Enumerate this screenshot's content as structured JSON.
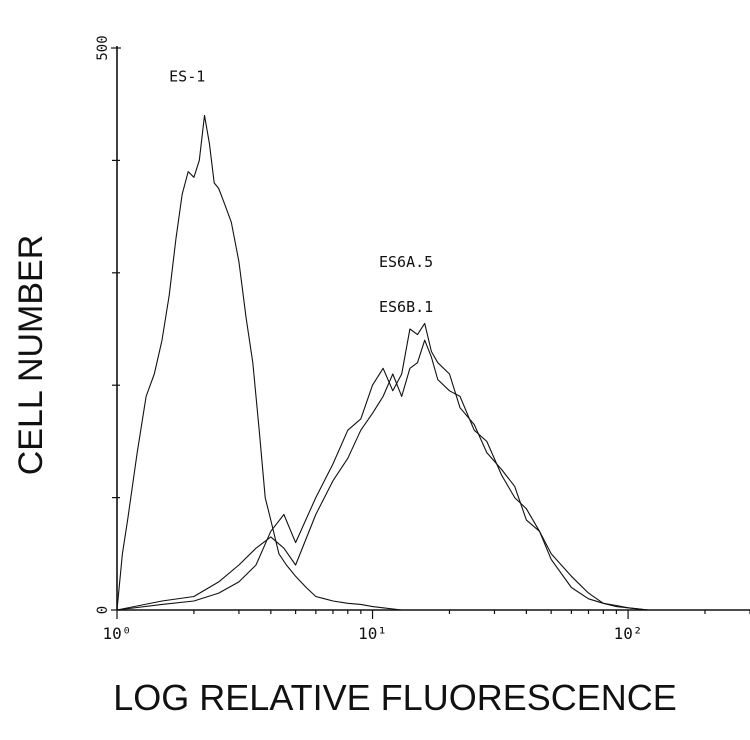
{
  "chart_data": {
    "type": "line",
    "xlabel": "LOG RELATIVE FLUORESCENCE",
    "ylabel": "CELL NUMBER",
    "x_scale": "log",
    "xlim": [
      1,
      300
    ],
    "ylim": [
      0,
      500
    ],
    "x_ticks": [
      {
        "value": 1,
        "label": "10⁰"
      },
      {
        "value": 10,
        "label": "10¹"
      },
      {
        "value": 100,
        "label": "10²"
      }
    ],
    "y_ticks": [
      {
        "value": 0,
        "label": "0"
      },
      {
        "value": 500,
        "label": "500"
      }
    ],
    "grid": false,
    "series": [
      {
        "name": "ES-1",
        "label_pos": {
          "x": 1.6,
          "y": 470
        },
        "x": [
          1.0,
          1.05,
          1.1,
          1.2,
          1.3,
          1.4,
          1.5,
          1.6,
          1.7,
          1.8,
          1.9,
          2.0,
          2.1,
          2.2,
          2.3,
          2.4,
          2.5,
          2.6,
          2.8,
          3.0,
          3.2,
          3.4,
          3.6,
          3.8,
          4.0,
          4.3,
          4.6,
          5.0,
          5.5,
          6.0,
          6.5,
          7.0,
          8.0,
          9.0,
          10.0,
          11.0,
          13.0
        ],
        "y": [
          0,
          50,
          80,
          140,
          190,
          210,
          240,
          280,
          330,
          370,
          390,
          385,
          400,
          440,
          415,
          380,
          375,
          365,
          345,
          310,
          260,
          220,
          160,
          100,
          80,
          50,
          40,
          30,
          20,
          12,
          10,
          8,
          6,
          5,
          3,
          2,
          0
        ]
      },
      {
        "name": "ES6A.5",
        "label_pos": {
          "x": 10.6,
          "y": 305
        },
        "x": [
          1.0,
          1.5,
          2.0,
          2.5,
          3.0,
          3.5,
          4.0,
          4.5,
          5.0,
          6.0,
          7.0,
          8.0,
          9.0,
          10.0,
          11.0,
          12.0,
          13.0,
          14.0,
          15.0,
          16.0,
          17.0,
          18.0,
          20.0,
          22.0,
          25.0,
          28.0,
          32.0,
          36.0,
          40.0,
          45.0,
          50.0,
          60.0,
          70.0,
          80.0,
          90.0,
          100.0,
          120.0
        ],
        "y": [
          0,
          5,
          8,
          15,
          25,
          40,
          70,
          85,
          60,
          100,
          130,
          160,
          170,
          200,
          215,
          195,
          210,
          250,
          245,
          255,
          230,
          220,
          210,
          180,
          165,
          140,
          125,
          110,
          80,
          70,
          50,
          30,
          15,
          6,
          3,
          2,
          0
        ]
      },
      {
        "name": "ES6B.1",
        "label_pos": {
          "x": 10.6,
          "y": 265
        },
        "x": [
          1.0,
          1.5,
          2.0,
          2.5,
          3.0,
          3.5,
          4.0,
          4.5,
          5.0,
          6.0,
          7.0,
          8.0,
          9.0,
          10.0,
          11.0,
          12.0,
          13.0,
          14.0,
          15.0,
          16.0,
          17.0,
          18.0,
          20.0,
          22.0,
          25.0,
          28.0,
          32.0,
          36.0,
          40.0,
          45.0,
          50.0,
          60.0,
          70.0,
          80.0,
          90.0,
          100.0,
          120.0
        ],
        "y": [
          0,
          8,
          12,
          25,
          40,
          55,
          65,
          55,
          40,
          85,
          115,
          135,
          160,
          175,
          190,
          210,
          190,
          215,
          220,
          240,
          225,
          205,
          195,
          190,
          160,
          150,
          120,
          100,
          90,
          70,
          45,
          20,
          10,
          6,
          4,
          2,
          0
        ]
      }
    ]
  }
}
